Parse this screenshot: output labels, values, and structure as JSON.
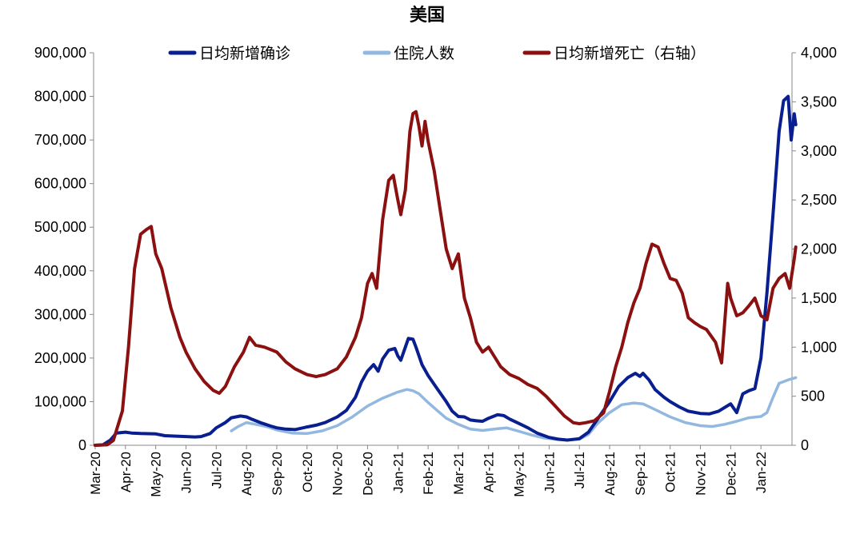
{
  "chart_data": {
    "type": "line",
    "title": "美国",
    "x_tick_labels": [
      "Mar-20",
      "Apr-20",
      "May-20",
      "Jun-20",
      "Jul-20",
      "Aug-20",
      "Sep-20",
      "Oct-20",
      "Nov-20",
      "Dec-20",
      "Jan-21",
      "Feb-21",
      "Mar-21",
      "Apr-21",
      "May-21",
      "Jun-21",
      "Jul-21",
      "Aug-21",
      "Sep-21",
      "Oct-21",
      "Nov-21",
      "Dec-21",
      "Jan-22"
    ],
    "y_left": {
      "ticks": [
        "0",
        "100,000",
        "200,000",
        "300,000",
        "400,000",
        "500,000",
        "600,000",
        "700,000",
        "800,000",
        "900,000"
      ],
      "lim": [
        0,
        900000
      ]
    },
    "y_right": {
      "ticks": [
        "0",
        "500",
        "1,000",
        "1,500",
        "2,000",
        "2,500",
        "3,000",
        "3,500",
        "4,000"
      ],
      "lim": [
        0,
        4000
      ]
    },
    "legend_position": "top",
    "series": [
      {
        "name": "日均新增确诊",
        "axis": "left",
        "color": "#0a1f8f",
        "points": [
          [
            0,
            0
          ],
          [
            0.25,
            1000
          ],
          [
            0.5,
            12000
          ],
          [
            0.7,
            28000
          ],
          [
            1.0,
            30000
          ],
          [
            1.2,
            28000
          ],
          [
            1.5,
            27000
          ],
          [
            2.0,
            26000
          ],
          [
            2.3,
            22000
          ],
          [
            2.6,
            21000
          ],
          [
            3.0,
            20000
          ],
          [
            3.3,
            19000
          ],
          [
            3.5,
            20000
          ],
          [
            3.8,
            27000
          ],
          [
            4.0,
            40000
          ],
          [
            4.3,
            52000
          ],
          [
            4.5,
            63000
          ],
          [
            4.8,
            67000
          ],
          [
            5.0,
            65000
          ],
          [
            5.2,
            59000
          ],
          [
            5.5,
            51000
          ],
          [
            5.8,
            44000
          ],
          [
            6.0,
            40000
          ],
          [
            6.3,
            37000
          ],
          [
            6.6,
            36000
          ],
          [
            7.0,
            42000
          ],
          [
            7.3,
            46000
          ],
          [
            7.6,
            52000
          ],
          [
            8.0,
            65000
          ],
          [
            8.3,
            80000
          ],
          [
            8.6,
            110000
          ],
          [
            8.8,
            145000
          ],
          [
            9.0,
            170000
          ],
          [
            9.2,
            185000
          ],
          [
            9.35,
            170000
          ],
          [
            9.5,
            198000
          ],
          [
            9.7,
            218000
          ],
          [
            9.9,
            222000
          ],
          [
            10.0,
            205000
          ],
          [
            10.1,
            195000
          ],
          [
            10.2,
            215000
          ],
          [
            10.35,
            245000
          ],
          [
            10.5,
            243000
          ],
          [
            10.6,
            225000
          ],
          [
            10.8,
            185000
          ],
          [
            11.0,
            160000
          ],
          [
            11.3,
            130000
          ],
          [
            11.6,
            100000
          ],
          [
            11.8,
            78000
          ],
          [
            12.0,
            66000
          ],
          [
            12.2,
            65000
          ],
          [
            12.4,
            58000
          ],
          [
            12.6,
            56000
          ],
          [
            12.8,
            55000
          ],
          [
            13.0,
            62000
          ],
          [
            13.3,
            70000
          ],
          [
            13.5,
            68000
          ],
          [
            13.7,
            60000
          ],
          [
            14.0,
            50000
          ],
          [
            14.3,
            40000
          ],
          [
            14.6,
            28000
          ],
          [
            15.0,
            18000
          ],
          [
            15.3,
            14000
          ],
          [
            15.6,
            12000
          ],
          [
            16.0,
            15000
          ],
          [
            16.3,
            30000
          ],
          [
            16.6,
            60000
          ],
          [
            17.0,
            100000
          ],
          [
            17.3,
            135000
          ],
          [
            17.6,
            155000
          ],
          [
            17.85,
            165000
          ],
          [
            18.0,
            158000
          ],
          [
            18.1,
            165000
          ],
          [
            18.3,
            150000
          ],
          [
            18.5,
            128000
          ],
          [
            18.8,
            110000
          ],
          [
            19.0,
            100000
          ],
          [
            19.3,
            88000
          ],
          [
            19.6,
            78000
          ],
          [
            20.0,
            73000
          ],
          [
            20.3,
            72000
          ],
          [
            20.6,
            78000
          ],
          [
            21.0,
            95000
          ],
          [
            21.2,
            75000
          ],
          [
            21.4,
            118000
          ],
          [
            21.6,
            125000
          ],
          [
            21.8,
            130000
          ],
          [
            22.0,
            200000
          ],
          [
            22.2,
            350000
          ],
          [
            22.4,
            530000
          ],
          [
            22.6,
            720000
          ],
          [
            22.75,
            790000
          ],
          [
            22.9,
            800000
          ],
          [
            23.0,
            700000
          ],
          [
            23.1,
            760000
          ],
          [
            23.15,
            735000
          ]
        ]
      },
      {
        "name": "住院人数",
        "axis": "left",
        "color": "#93b8e0",
        "points": [
          [
            4.5,
            33000
          ],
          [
            4.7,
            42000
          ],
          [
            5.0,
            52000
          ],
          [
            5.3,
            48000
          ],
          [
            5.7,
            42000
          ],
          [
            6.0,
            35000
          ],
          [
            6.5,
            28000
          ],
          [
            7.0,
            27000
          ],
          [
            7.5,
            33000
          ],
          [
            8.0,
            45000
          ],
          [
            8.5,
            65000
          ],
          [
            9.0,
            90000
          ],
          [
            9.5,
            108000
          ],
          [
            10.0,
            122000
          ],
          [
            10.3,
            128000
          ],
          [
            10.5,
            125000
          ],
          [
            10.7,
            118000
          ],
          [
            11.0,
            98000
          ],
          [
            11.3,
            80000
          ],
          [
            11.6,
            62000
          ],
          [
            12.0,
            48000
          ],
          [
            12.4,
            37000
          ],
          [
            12.8,
            34000
          ],
          [
            13.3,
            38000
          ],
          [
            13.6,
            40000
          ],
          [
            14.0,
            32000
          ],
          [
            14.4,
            24000
          ],
          [
            14.8,
            17000
          ],
          [
            15.3,
            13000
          ],
          [
            15.6,
            12000
          ],
          [
            16.0,
            14000
          ],
          [
            16.3,
            25000
          ],
          [
            16.6,
            50000
          ],
          [
            17.0,
            75000
          ],
          [
            17.4,
            93000
          ],
          [
            17.8,
            97000
          ],
          [
            18.1,
            95000
          ],
          [
            18.5,
            82000
          ],
          [
            19.0,
            65000
          ],
          [
            19.5,
            52000
          ],
          [
            20.0,
            45000
          ],
          [
            20.4,
            43000
          ],
          [
            20.8,
            48000
          ],
          [
            21.2,
            55000
          ],
          [
            21.6,
            63000
          ],
          [
            22.0,
            66000
          ],
          [
            22.2,
            75000
          ],
          [
            22.4,
            110000
          ],
          [
            22.6,
            142000
          ],
          [
            22.9,
            150000
          ],
          [
            23.15,
            155000
          ]
        ]
      },
      {
        "name": "日均新增死亡（右轴）",
        "axis": "right",
        "color": "#8b1010",
        "points": [
          [
            0,
            0
          ],
          [
            0.4,
            5
          ],
          [
            0.6,
            50
          ],
          [
            0.9,
            350
          ],
          [
            1.1,
            1000
          ],
          [
            1.3,
            1800
          ],
          [
            1.5,
            2150
          ],
          [
            1.7,
            2200
          ],
          [
            1.85,
            2230
          ],
          [
            2.0,
            1950
          ],
          [
            2.2,
            1800
          ],
          [
            2.5,
            1400
          ],
          [
            2.8,
            1100
          ],
          [
            3.0,
            950
          ],
          [
            3.3,
            780
          ],
          [
            3.6,
            650
          ],
          [
            3.9,
            560
          ],
          [
            4.1,
            530
          ],
          [
            4.3,
            600
          ],
          [
            4.6,
            800
          ],
          [
            4.9,
            950
          ],
          [
            5.1,
            1100
          ],
          [
            5.3,
            1020
          ],
          [
            5.6,
            1000
          ],
          [
            6.0,
            950
          ],
          [
            6.3,
            850
          ],
          [
            6.6,
            780
          ],
          [
            7.0,
            720
          ],
          [
            7.3,
            700
          ],
          [
            7.6,
            720
          ],
          [
            8.0,
            780
          ],
          [
            8.3,
            900
          ],
          [
            8.6,
            1100
          ],
          [
            8.8,
            1300
          ],
          [
            9.0,
            1650
          ],
          [
            9.15,
            1750
          ],
          [
            9.3,
            1600
          ],
          [
            9.5,
            2300
          ],
          [
            9.7,
            2700
          ],
          [
            9.85,
            2750
          ],
          [
            10.0,
            2500
          ],
          [
            10.1,
            2350
          ],
          [
            10.25,
            2600
          ],
          [
            10.4,
            3200
          ],
          [
            10.5,
            3380
          ],
          [
            10.6,
            3400
          ],
          [
            10.7,
            3250
          ],
          [
            10.8,
            3050
          ],
          [
            10.9,
            3300
          ],
          [
            11.0,
            3100
          ],
          [
            11.2,
            2800
          ],
          [
            11.4,
            2400
          ],
          [
            11.6,
            2000
          ],
          [
            11.8,
            1800
          ],
          [
            12.0,
            1950
          ],
          [
            12.2,
            1500
          ],
          [
            12.4,
            1300
          ],
          [
            12.6,
            1050
          ],
          [
            12.8,
            950
          ],
          [
            13.0,
            1000
          ],
          [
            13.2,
            900
          ],
          [
            13.4,
            800
          ],
          [
            13.7,
            720
          ],
          [
            14.0,
            680
          ],
          [
            14.3,
            620
          ],
          [
            14.6,
            580
          ],
          [
            14.9,
            500
          ],
          [
            15.2,
            400
          ],
          [
            15.5,
            300
          ],
          [
            15.8,
            230
          ],
          [
            16.0,
            220
          ],
          [
            16.2,
            230
          ],
          [
            16.5,
            250
          ],
          [
            16.8,
            330
          ],
          [
            17.0,
            550
          ],
          [
            17.2,
            800
          ],
          [
            17.4,
            1000
          ],
          [
            17.6,
            1250
          ],
          [
            17.8,
            1450
          ],
          [
            18.0,
            1600
          ],
          [
            18.2,
            1850
          ],
          [
            18.4,
            2050
          ],
          [
            18.6,
            2020
          ],
          [
            18.8,
            1850
          ],
          [
            19.0,
            1700
          ],
          [
            19.2,
            1680
          ],
          [
            19.4,
            1550
          ],
          [
            19.6,
            1300
          ],
          [
            19.8,
            1250
          ],
          [
            20.0,
            1210
          ],
          [
            20.2,
            1180
          ],
          [
            20.5,
            1050
          ],
          [
            20.7,
            840
          ],
          [
            20.9,
            1650
          ],
          [
            21.0,
            1500
          ],
          [
            21.2,
            1320
          ],
          [
            21.4,
            1350
          ],
          [
            21.6,
            1420
          ],
          [
            21.8,
            1500
          ],
          [
            22.0,
            1320
          ],
          [
            22.2,
            1280
          ],
          [
            22.4,
            1600
          ],
          [
            22.6,
            1700
          ],
          [
            22.8,
            1750
          ],
          [
            22.95,
            1600
          ],
          [
            23.1,
            1900
          ],
          [
            23.15,
            2020
          ]
        ]
      }
    ]
  }
}
